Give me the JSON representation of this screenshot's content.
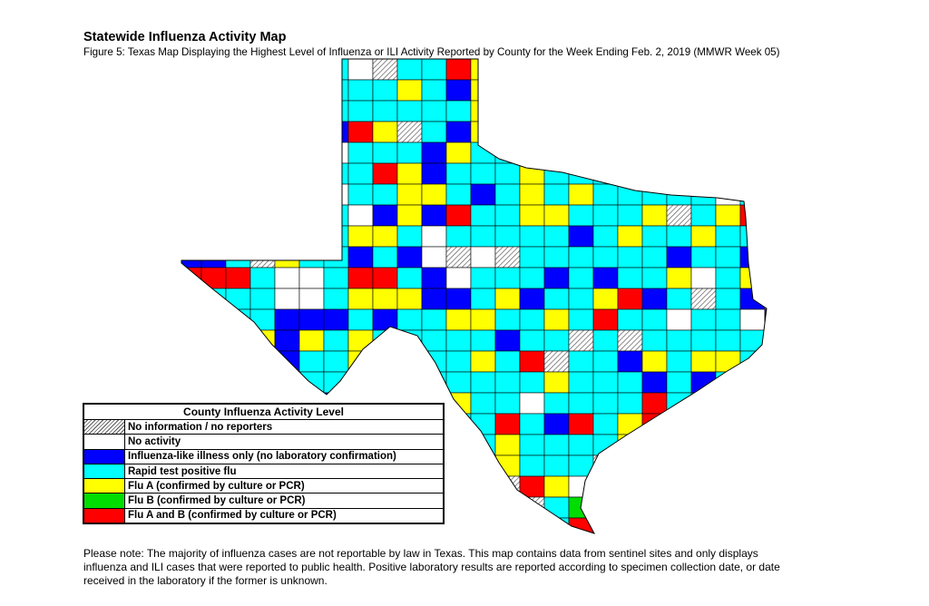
{
  "header": {
    "title": "Statewide Influenza Activity Map",
    "subtitle": "Figure 5: Texas Map Displaying the Highest Level of Influenza or ILI Activity Reported by County for the Week Ending Feb. 2, 2019 (MMWR Week 05)"
  },
  "legend": {
    "title": "County Influenza Activity Level",
    "items": [
      {
        "label": "No information / no reporters",
        "color": "hatched"
      },
      {
        "label": "No activity",
        "color": "#FFFFFF"
      },
      {
        "label": "Influenza-like illness only (no laboratory confirmation)",
        "color": "#0000FF"
      },
      {
        "label": "Rapid test positive flu",
        "color": "#00FFFF"
      },
      {
        "label": "Flu A (confirmed by culture or PCR)",
        "color": "#FFFF00"
      },
      {
        "label": "Flu B (confirmed by culture or PCR)",
        "color": "#00DD00"
      },
      {
        "label": "Flu A and B (confirmed by culture or PCR)",
        "color": "#FF0000"
      }
    ]
  },
  "note": "Please note: The majority of influenza cases are not reportable by law in Texas. This map contains data from sentinel sites and only displays influenza and ILI cases that were reported to public health. Positive laboratory results are reported according to specimen collection date, or date received in the laboratory if the former is unknown."
}
